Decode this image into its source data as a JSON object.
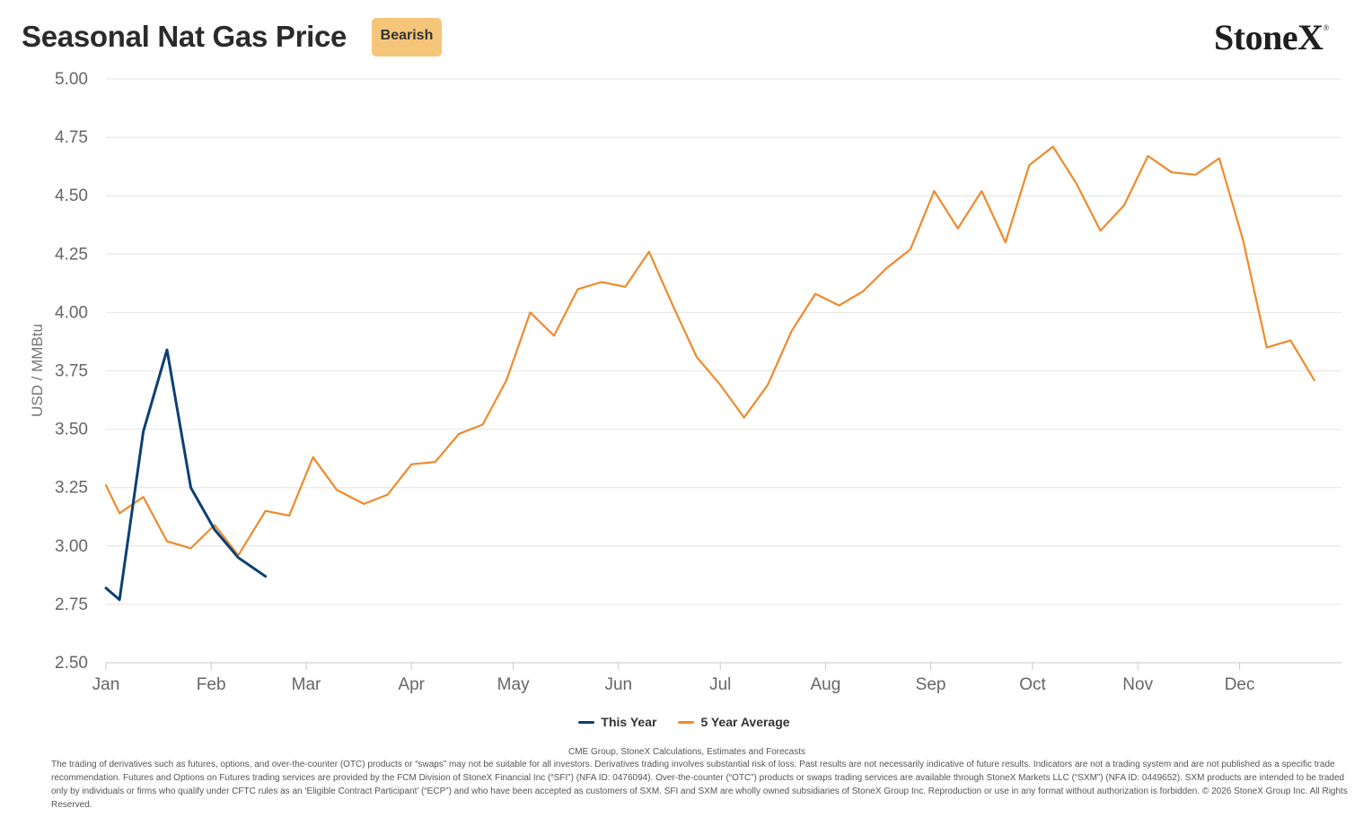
{
  "header": {
    "title": "Seasonal Nat Gas Price",
    "badge": "Bearish",
    "logo_text": "StoneX",
    "logo_mark": "®"
  },
  "footer": {
    "source": "CME Group, StoneX Calculations, Estimates and Forecasts",
    "disclaimer": "The trading of derivatives such as futures, options, and over-the-counter (OTC) products or “swaps” may not be suitable for all investors. Derivatives trading involves substantial risk of loss. Past results are not necessarily indicative of future results. Indicators are not a trading system and are not published as a specific trade recommendation. Futures and Options on Futures trading services are provided by the FCM Division of StoneX Financial Inc (“SFI”) (NFA ID: 0476094). Over-the-counter (“OTC”) products or swaps trading services are available through StoneX Markets LLC (“SXM”) (NFA ID: 0449652). SXM products are intended to be traded only by individuals or firms who qualify under CFTC rules as an ‘Eligible Contract Participant’ (“ECP”) and who have been accepted as customers of SXM. SFI and SXM are wholly owned subsidiaries of StoneX Group Inc. Reproduction or use in any format without authorization is forbidden. © 2026 StoneX Group Inc. All Rights Reserved."
  },
  "chart_data": {
    "type": "line",
    "title": "Seasonal Nat Gas Price",
    "xlabel": "",
    "ylabel": "USD / MMBtu",
    "ylim": [
      2.5,
      5.0
    ],
    "yticks": [
      "2.50",
      "2.75",
      "3.00",
      "3.25",
      "3.50",
      "3.75",
      "4.00",
      "4.25",
      "4.50",
      "4.75",
      "5.00"
    ],
    "xlim_day_of_year": [
      1,
      365
    ],
    "months": [
      {
        "label": "Jan",
        "day": 1
      },
      {
        "label": "Feb",
        "day": 32
      },
      {
        "label": "Mar",
        "day": 60
      },
      {
        "label": "Apr",
        "day": 91
      },
      {
        "label": "May",
        "day": 121
      },
      {
        "label": "Jun",
        "day": 152
      },
      {
        "label": "Jul",
        "day": 182
      },
      {
        "label": "Aug",
        "day": 213
      },
      {
        "label": "Sep",
        "day": 244
      },
      {
        "label": "Oct",
        "day": 274
      },
      {
        "label": "Nov",
        "day": 305
      },
      {
        "label": "Dec",
        "day": 335
      }
    ],
    "grid": true,
    "legend_position": "bottom-center",
    "series": [
      {
        "name": "This Year",
        "color": "#0d3f74",
        "points": [
          [
            1,
            2.82
          ],
          [
            5,
            2.77
          ],
          [
            12,
            3.49
          ],
          [
            19,
            3.84
          ],
          [
            26,
            3.25
          ],
          [
            33,
            3.07
          ],
          [
            40,
            2.95
          ],
          [
            48,
            2.87
          ]
        ]
      },
      {
        "name": "5 Year Average",
        "color": "#f08a2a",
        "points": [
          [
            1,
            3.26
          ],
          [
            5,
            3.14
          ],
          [
            12,
            3.21
          ],
          [
            19,
            3.02
          ],
          [
            26,
            2.99
          ],
          [
            33,
            3.09
          ],
          [
            40,
            2.96
          ],
          [
            48,
            3.15
          ],
          [
            55,
            3.13
          ],
          [
            62,
            3.38
          ],
          [
            69,
            3.24
          ],
          [
            77,
            3.18
          ],
          [
            84,
            3.22
          ],
          [
            91,
            3.35
          ],
          [
            98,
            3.36
          ],
          [
            105,
            3.48
          ],
          [
            112,
            3.52
          ],
          [
            119,
            3.71
          ],
          [
            126,
            4.0
          ],
          [
            133,
            3.9
          ],
          [
            140,
            4.1
          ],
          [
            147,
            4.13
          ],
          [
            154,
            4.11
          ],
          [
            161,
            4.26
          ],
          [
            168,
            4.03
          ],
          [
            175,
            3.81
          ],
          [
            182,
            3.69
          ],
          [
            189,
            3.55
          ],
          [
            196,
            3.69
          ],
          [
            203,
            3.92
          ],
          [
            210,
            4.08
          ],
          [
            217,
            4.03
          ],
          [
            224,
            4.09
          ],
          [
            231,
            4.19
          ],
          [
            238,
            4.27
          ],
          [
            245,
            4.52
          ],
          [
            252,
            4.36
          ],
          [
            259,
            4.52
          ],
          [
            266,
            4.3
          ],
          [
            273,
            4.63
          ],
          [
            280,
            4.71
          ],
          [
            287,
            4.55
          ],
          [
            294,
            4.35
          ],
          [
            301,
            4.46
          ],
          [
            308,
            4.67
          ],
          [
            315,
            4.6
          ],
          [
            322,
            4.59
          ],
          [
            329,
            4.66
          ],
          [
            336,
            4.31
          ],
          [
            343,
            3.85
          ],
          [
            350,
            3.88
          ],
          [
            357,
            3.71
          ]
        ]
      }
    ]
  }
}
